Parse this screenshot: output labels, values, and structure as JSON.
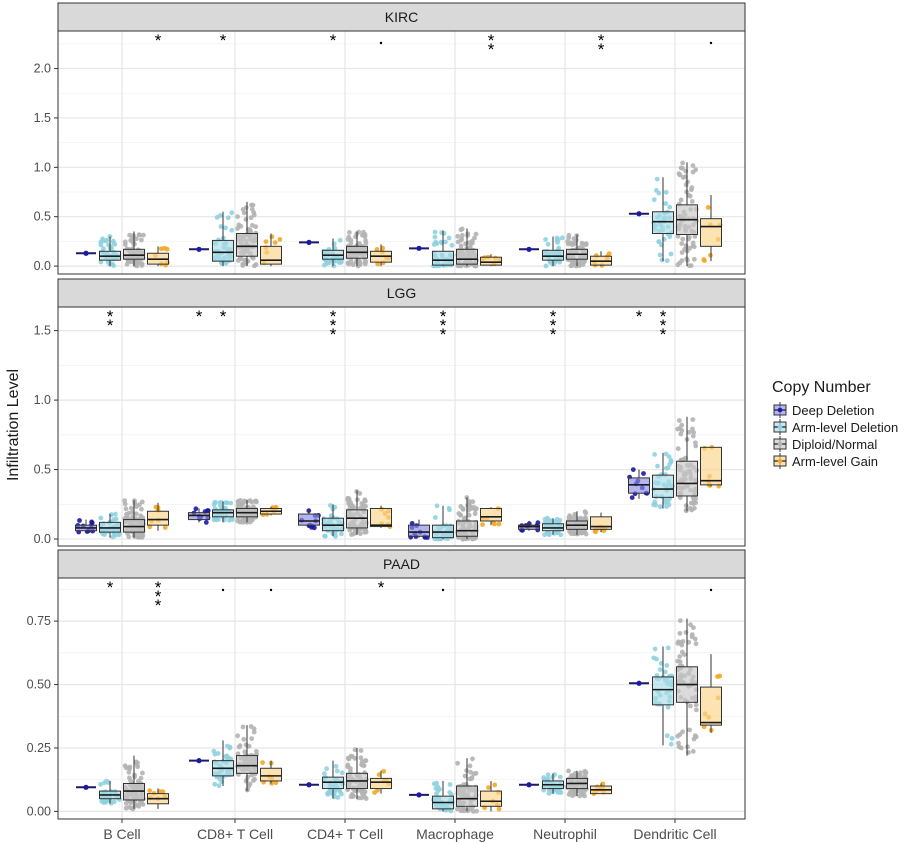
{
  "chart_data": {
    "type": "boxplot",
    "ylabel": "Infiltration Level",
    "xlabel": "",
    "categories": [
      "B Cell",
      "CD8+ T Cell",
      "CD4+ T Cell",
      "Macrophage",
      "Neutrophil",
      "Dendritic Cell"
    ],
    "legend": {
      "title": "Copy Number",
      "position": "right",
      "entries": [
        {
          "name": "Deep Deletion",
          "fill": "#8c8ce8",
          "point": "#1a1aa6"
        },
        {
          "name": "Arm-level Deletion",
          "fill": "#a9dbe6",
          "point": "#8fd1e0"
        },
        {
          "name": "Diploid/Normal",
          "fill": "#c8c8c8",
          "point": "#b3b3b3"
        },
        {
          "name": "Arm-level Gain",
          "fill": "#fcd489",
          "point": "#f5a623"
        }
      ]
    },
    "panels": [
      {
        "title": "KIRC",
        "ylim": [
          -0.08,
          2.38
        ],
        "yticks": [
          0.0,
          0.5,
          1.0,
          1.5,
          2.0
        ],
        "yticklabels": [
          "0.0",
          "0.5",
          "1.0",
          "1.5",
          "2.0"
        ],
        "significance": [
          [
            "",
            "",
            "",
            "*"
          ],
          [
            "",
            "*",
            "",
            ""
          ],
          [
            "",
            "*",
            "",
            "."
          ],
          [
            "",
            "",
            "",
            "**"
          ],
          [
            "",
            "",
            "",
            "**"
          ],
          [
            "",
            "",
            "",
            "."
          ]
        ],
        "boxes": [
          [
            [
              0.13,
              0.13,
              0.13,
              0.13,
              0.13
            ],
            [
              0,
              0.06,
              0.1,
              0.15,
              0.3
            ],
            [
              0,
              0.07,
              0.11,
              0.17,
              0.35
            ],
            [
              0,
              0.02,
              0.07,
              0.13,
              0.2
            ]
          ],
          [
            [
              0.17,
              0.17,
              0.17,
              0.17,
              0.17
            ],
            [
              0,
              0.05,
              0.14,
              0.26,
              0.55
            ],
            [
              0,
              0.1,
              0.2,
              0.33,
              0.65
            ],
            [
              0,
              0.02,
              0.06,
              0.2,
              0.33
            ]
          ],
          [
            [
              0.24,
              0.24,
              0.24,
              0.24,
              0.24
            ],
            [
              0,
              0.07,
              0.11,
              0.16,
              0.28
            ],
            [
              0,
              0.08,
              0.14,
              0.2,
              0.35
            ],
            [
              0,
              0.04,
              0.1,
              0.15,
              0.22
            ]
          ],
          [
            [
              0.18,
              0.18,
              0.18,
              0.18,
              0.18
            ],
            [
              0,
              0.01,
              0.06,
              0.15,
              0.36
            ],
            [
              0,
              0.02,
              0.07,
              0.17,
              0.38
            ],
            [
              0,
              0.01,
              0.04,
              0.09,
              0.12
            ]
          ],
          [
            [
              0.17,
              0.17,
              0.17,
              0.17,
              0.17
            ],
            [
              0,
              0.06,
              0.1,
              0.16,
              0.3
            ],
            [
              0,
              0.07,
              0.12,
              0.17,
              0.32
            ],
            [
              0,
              0.01,
              0.05,
              0.1,
              0.15
            ]
          ],
          [
            [
              0.53,
              0.53,
              0.53,
              0.53,
              0.53
            ],
            [
              0.05,
              0.33,
              0.45,
              0.55,
              0.9
            ],
            [
              0,
              0.32,
              0.47,
              0.62,
              1.05
            ],
            [
              0.05,
              0.2,
              0.4,
              0.48,
              0.72
            ]
          ]
        ]
      },
      {
        "title": "LGG",
        "ylim": [
          -0.05,
          1.67
        ],
        "yticks": [
          0.0,
          0.5,
          1.0,
          1.5
        ],
        "yticklabels": [
          "0.0",
          "0.5",
          "1.0",
          "1.5"
        ],
        "significance": [
          [
            "",
            "**",
            "",
            ""
          ],
          [
            "*",
            "*",
            "",
            ""
          ],
          [
            "",
            "***",
            "",
            ""
          ],
          [
            "",
            "***",
            "",
            ""
          ],
          [
            "",
            "***",
            "",
            ""
          ],
          [
            "*",
            "***",
            "",
            ""
          ]
        ],
        "boxes": [
          [
            [
              0.05,
              0.06,
              0.08,
              0.1,
              0.14
            ],
            [
              0.01,
              0.05,
              0.08,
              0.12,
              0.18
            ],
            [
              0.01,
              0.05,
              0.09,
              0.14,
              0.28
            ],
            [
              0.06,
              0.1,
              0.14,
              0.2,
              0.26
            ]
          ],
          [
            [
              0.12,
              0.14,
              0.17,
              0.19,
              0.22
            ],
            [
              0.12,
              0.16,
              0.19,
              0.21,
              0.27
            ],
            [
              0.12,
              0.16,
              0.19,
              0.22,
              0.28
            ],
            [
              0.17,
              0.18,
              0.2,
              0.22,
              0.23
            ]
          ],
          [
            [
              0.08,
              0.1,
              0.13,
              0.18,
              0.22
            ],
            [
              0.02,
              0.06,
              0.1,
              0.15,
              0.25
            ],
            [
              0.03,
              0.08,
              0.15,
              0.21,
              0.35
            ],
            [
              0.08,
              0.09,
              0.1,
              0.22,
              0.24
            ]
          ],
          [
            [
              0.01,
              0.02,
              0.05,
              0.1,
              0.14
            ],
            [
              0,
              0.01,
              0.05,
              0.1,
              0.24
            ],
            [
              0,
              0.02,
              0.06,
              0.13,
              0.3
            ],
            [
              0.1,
              0.13,
              0.16,
              0.22,
              0.23
            ]
          ],
          [
            [
              0.06,
              0.07,
              0.09,
              0.1,
              0.13
            ],
            [
              0.03,
              0.06,
              0.08,
              0.11,
              0.15
            ],
            [
              0.03,
              0.07,
              0.1,
              0.13,
              0.2
            ],
            [
              0.05,
              0.07,
              0.09,
              0.16,
              0.19
            ]
          ],
          [
            [
              0.29,
              0.33,
              0.39,
              0.44,
              0.5
            ],
            [
              0.22,
              0.3,
              0.36,
              0.46,
              0.62
            ],
            [
              0.2,
              0.31,
              0.4,
              0.56,
              0.88
            ],
            [
              0.38,
              0.39,
              0.42,
              0.66,
              0.66
            ]
          ]
        ]
      },
      {
        "title": "PAAD",
        "ylim": [
          -0.03,
          0.92
        ],
        "yticks": [
          0.0,
          0.25,
          0.5,
          0.75
        ],
        "yticklabels": [
          "0.00",
          "0.25",
          "0.50",
          "0.75"
        ],
        "significance": [
          [
            "",
            "*",
            "",
            "***"
          ],
          [
            "",
            ".",
            "",
            "."
          ],
          [
            "",
            "",
            "",
            "*"
          ],
          [
            "",
            ".",
            "",
            ""
          ],
          [
            "",
            "",
            "",
            ""
          ],
          [
            "",
            "",
            "",
            "."
          ]
        ],
        "boxes": [
          [
            [
              0.095,
              0.095,
              0.095,
              0.095,
              0.095
            ],
            [
              0.03,
              0.05,
              0.065,
              0.08,
              0.12
            ],
            [
              0.01,
              0.045,
              0.08,
              0.11,
              0.22
            ],
            [
              0.01,
              0.03,
              0.05,
              0.07,
              0.09
            ]
          ],
          [
            [
              0.2,
              0.2,
              0.2,
              0.2,
              0.2
            ],
            [
              0.1,
              0.14,
              0.17,
              0.2,
              0.28
            ],
            [
              0.08,
              0.15,
              0.18,
              0.22,
              0.34
            ],
            [
              0.11,
              0.12,
              0.14,
              0.17,
              0.2
            ]
          ],
          [
            [
              0.105,
              0.105,
              0.105,
              0.105,
              0.105
            ],
            [
              0.05,
              0.09,
              0.115,
              0.135,
              0.2
            ],
            [
              0.05,
              0.09,
              0.12,
              0.15,
              0.25
            ],
            [
              0.07,
              0.09,
              0.115,
              0.13,
              0.16
            ]
          ],
          [
            [
              0.065,
              0.065,
              0.065,
              0.065,
              0.065
            ],
            [
              0,
              0.01,
              0.035,
              0.06,
              0.12
            ],
            [
              0,
              0.02,
              0.05,
              0.1,
              0.21
            ],
            [
              0,
              0.02,
              0.04,
              0.08,
              0.12
            ]
          ],
          [
            [
              0.105,
              0.105,
              0.105,
              0.105,
              0.105
            ],
            [
              0.07,
              0.09,
              0.105,
              0.12,
              0.15
            ],
            [
              0.06,
              0.09,
              0.11,
              0.13,
              0.16
            ],
            [
              0.07,
              0.07,
              0.085,
              0.1,
              0.11
            ]
          ],
          [
            [
              0.505,
              0.505,
              0.505,
              0.505,
              0.505
            ],
            [
              0.26,
              0.42,
              0.48,
              0.53,
              0.65
            ],
            [
              0.22,
              0.43,
              0.5,
              0.57,
              0.76
            ],
            [
              0.31,
              0.34,
              0.35,
              0.49,
              0.62
            ]
          ]
        ]
      }
    ]
  }
}
